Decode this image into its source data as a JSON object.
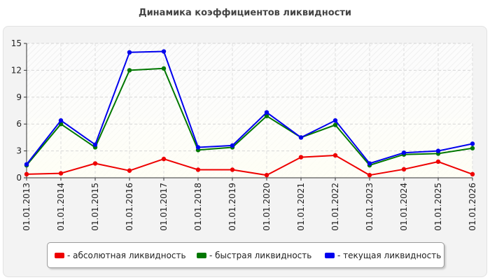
{
  "title": "Динамика коэффициентов ликвидности",
  "chart_data": {
    "type": "line",
    "title": "Динамика коэффициентов ликвидности",
    "x": [
      "01.01.2013",
      "01.01.2014",
      "01.01.2015",
      "01.01.2016",
      "01.01.2017",
      "01.01.2018",
      "01.01.2019",
      "01.01.2020",
      "01.01.2021",
      "01.01.2022",
      "01.01.2023",
      "01.01.2024",
      "01.01.2025",
      "01.01.2026"
    ],
    "ylim": [
      0,
      15
    ],
    "yticks": [
      0,
      3,
      6,
      9,
      12,
      15
    ],
    "grid": true,
    "legend_position": "bottom",
    "series": [
      {
        "name": "- абсолютная ликвидность",
        "color": "#ee0000",
        "values": [
          0.4,
          0.5,
          1.6,
          0.8,
          2.1,
          0.9,
          0.9,
          0.3,
          2.3,
          2.5,
          0.3,
          0.95,
          1.8,
          0.4
        ]
      },
      {
        "name": "- быстрая ликвидность",
        "color": "#007700",
        "values": [
          1.4,
          6.0,
          3.4,
          12.0,
          12.2,
          3.1,
          3.4,
          6.9,
          4.5,
          5.9,
          1.4,
          2.6,
          2.7,
          3.3
        ]
      },
      {
        "name": "- текущая ликвидность",
        "color": "#0000ee",
        "values": [
          1.5,
          6.4,
          3.7,
          14.0,
          14.1,
          3.4,
          3.6,
          7.3,
          4.5,
          6.4,
          1.6,
          2.8,
          3.0,
          3.8
        ]
      }
    ]
  }
}
